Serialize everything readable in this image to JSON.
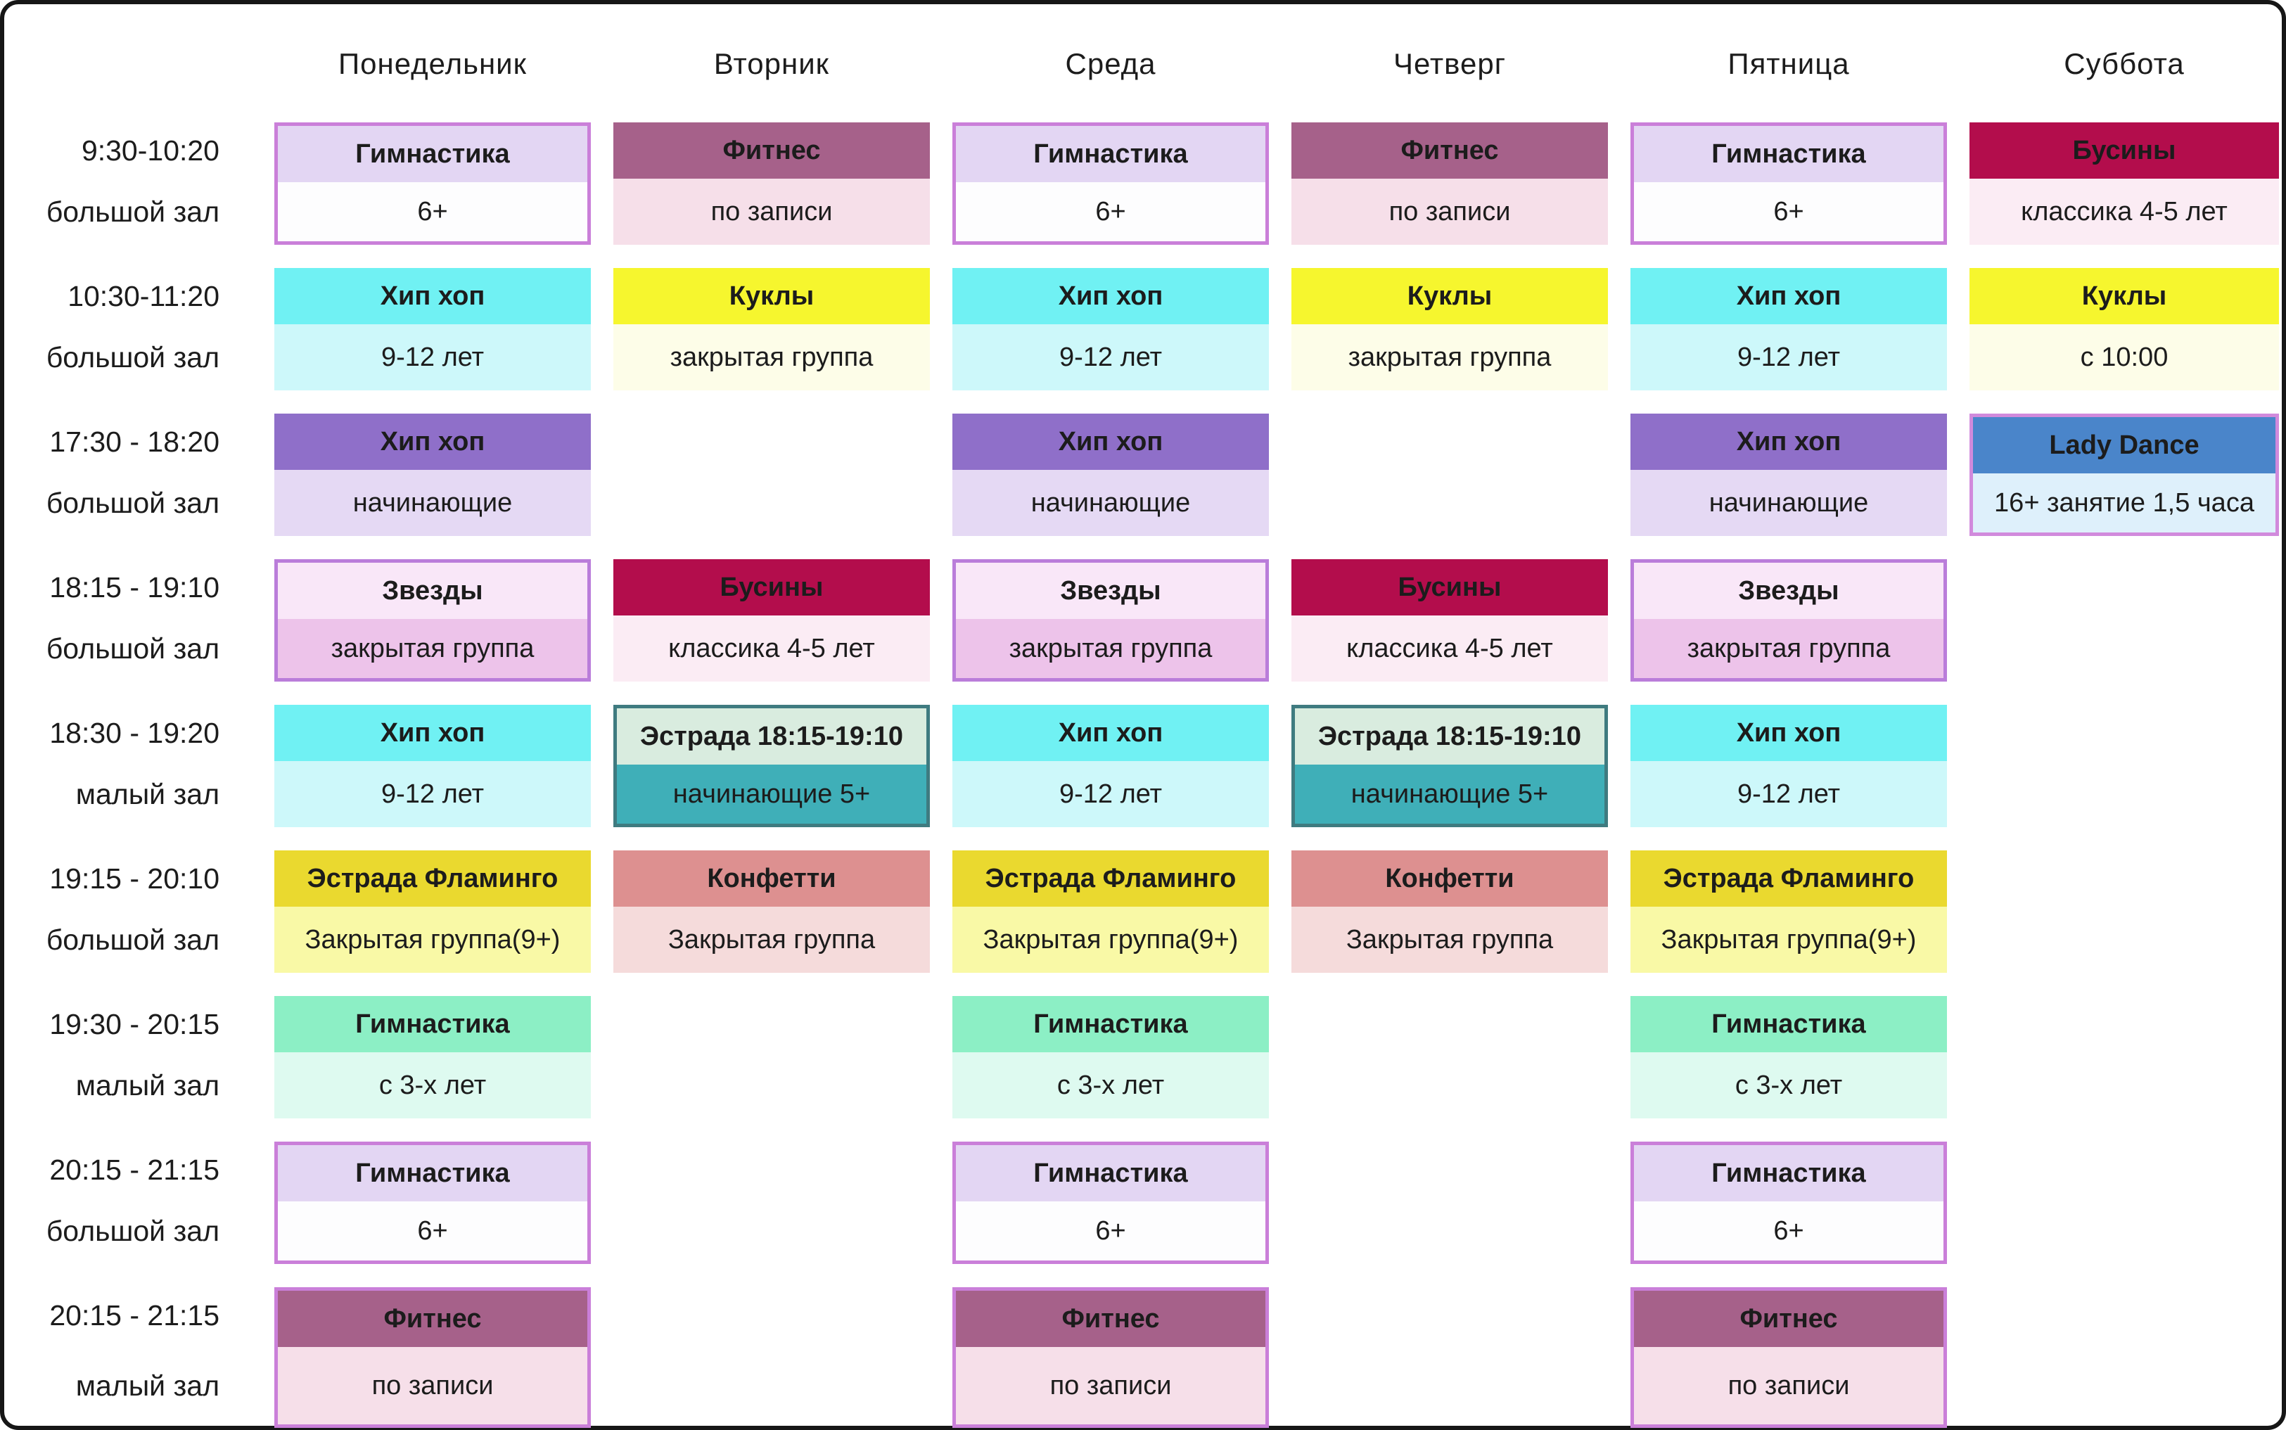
{
  "days": [
    "Понедельник",
    "Вторник",
    "Среда",
    "Четверг",
    "Пятница",
    "Суббота"
  ],
  "frame_color": "#161616",
  "text_color": "#1c1c1c",
  "styles": {
    "gymnastics_purple": {
      "header_bg": "#e3d6f3",
      "body_bg": "#fdfdfe",
      "border": "#ca7fd9"
    },
    "fitness": {
      "header_bg": "#a6618a",
      "body_bg": "#f6dfe9"
    },
    "fitness_bordered": {
      "header_bg": "#a6618a",
      "body_bg": "#f6dfe9",
      "border": "#ca7fd9"
    },
    "beads": {
      "header_bg": "#b30d4c",
      "body_bg": "#fbecf4"
    },
    "hiphop_cyan": {
      "header_bg": "#70f1f3",
      "body_bg": "#cdf8fa"
    },
    "dolls": {
      "header_bg": "#f6f62e",
      "body_bg": "#fdfde8"
    },
    "hiphop_purple": {
      "header_bg": "#8f6fc9",
      "body_bg": "#e5d9f4"
    },
    "lady_dance": {
      "header_bg": "#4a85ca",
      "body_bg": "#def0fb",
      "border": "#d18adc"
    },
    "stars": {
      "header_bg": "#f9e7f8",
      "body_bg": "#edc3ea",
      "border": "#ba7dda"
    },
    "estrada": {
      "header_bg": "#d9ecdf",
      "body_bg": "#3fafb8",
      "border": "#3f7b80"
    },
    "flamingo": {
      "header_bg": "#ead92f",
      "body_bg": "#f9f9a6"
    },
    "confetti": {
      "header_bg": "#dd9090",
      "body_bg": "#f5dbdb"
    },
    "gymnastics_mint": {
      "header_bg": "#8cefc5",
      "body_bg": "#defaf0"
    }
  },
  "rows": [
    {
      "time": "9:30-10:20",
      "hall": "большой зал",
      "cells": [
        {
          "title": "Гимнастика",
          "subtitle": "6+",
          "style": "gymnastics_purple"
        },
        {
          "title": "Фитнес",
          "subtitle": "по записи",
          "style": "fitness"
        },
        {
          "title": "Гимнастика",
          "subtitle": "6+",
          "style": "gymnastics_purple"
        },
        {
          "title": "Фитнес",
          "subtitle": "по записи",
          "style": "fitness"
        },
        {
          "title": "Гимнастика",
          "subtitle": "6+",
          "style": "gymnastics_purple"
        },
        {
          "title": "Бусины",
          "subtitle": "классика 4-5 лет",
          "style": "beads"
        }
      ]
    },
    {
      "time": "10:30-11:20",
      "hall": "большой зал",
      "cells": [
        {
          "title": "Хип хоп",
          "subtitle": "9-12 лет",
          "style": "hiphop_cyan"
        },
        {
          "title": "Куклы",
          "subtitle": "закрытая группа",
          "style": "dolls"
        },
        {
          "title": "Хип хоп",
          "subtitle": "9-12 лет",
          "style": "hiphop_cyan"
        },
        {
          "title": "Куклы",
          "subtitle": "закрытая группа",
          "style": "dolls"
        },
        {
          "title": "Хип хоп",
          "subtitle": "9-12 лет",
          "style": "hiphop_cyan"
        },
        {
          "title": "Куклы",
          "subtitle": "с 10:00",
          "style": "dolls"
        }
      ]
    },
    {
      "time": "17:30 - 18:20",
      "hall": "большой зал",
      "cells": [
        {
          "title": "Хип хоп",
          "subtitle": "начинающие",
          "style": "hiphop_purple"
        },
        null,
        {
          "title": "Хип хоп",
          "subtitle": "начинающие",
          "style": "hiphop_purple"
        },
        null,
        {
          "title": "Хип хоп",
          "subtitle": "начинающие",
          "style": "hiphop_purple"
        },
        {
          "title": "Lady Dance",
          "subtitle": "16+ занятие 1,5 часа",
          "style": "lady_dance"
        }
      ]
    },
    {
      "time": "18:15 - 19:10",
      "hall": "большой зал",
      "cells": [
        {
          "title": "Звезды",
          "subtitle": "закрытая группа",
          "style": "stars"
        },
        {
          "title": "Бусины",
          "subtitle": "классика 4-5 лет",
          "style": "beads"
        },
        {
          "title": "Звезды",
          "subtitle": "закрытая группа",
          "style": "stars"
        },
        {
          "title": "Бусины",
          "subtitle": "классика 4-5 лет",
          "style": "beads"
        },
        {
          "title": "Звезды",
          "subtitle": "закрытая группа",
          "style": "stars"
        },
        null
      ]
    },
    {
      "time": "18:30 - 19:20",
      "hall": "малый зал",
      "cells": [
        {
          "title": "Хип хоп",
          "subtitle": "9-12 лет",
          "style": "hiphop_cyan"
        },
        {
          "title": "Эстрада 18:15-19:10",
          "subtitle": "начинающие 5+",
          "style": "estrada"
        },
        {
          "title": "Хип хоп",
          "subtitle": "9-12 лет",
          "style": "hiphop_cyan"
        },
        {
          "title": "Эстрада 18:15-19:10",
          "subtitle": "начинающие 5+",
          "style": "estrada"
        },
        {
          "title": "Хип хоп",
          "subtitle": "9-12 лет",
          "style": "hiphop_cyan"
        },
        null
      ]
    },
    {
      "time": "19:15 - 20:10",
      "hall": "большой зал",
      "cells": [
        {
          "title": "Эстрада Фламинго",
          "subtitle": "Закрытая группа(9+)",
          "style": "flamingo"
        },
        {
          "title": "Конфетти",
          "subtitle": "Закрытая группа",
          "style": "confetti"
        },
        {
          "title": "Эстрада Фламинго",
          "subtitle": "Закрытая группа(9+)",
          "style": "flamingo"
        },
        {
          "title": "Конфетти",
          "subtitle": "Закрытая группа",
          "style": "confetti"
        },
        {
          "title": "Эстрада Фламинго",
          "subtitle": "Закрытая группа(9+)",
          "style": "flamingo"
        },
        null
      ]
    },
    {
      "time": "19:30 - 20:15",
      "hall": "малый зал",
      "cells": [
        {
          "title": "Гимнастика",
          "subtitle": "с 3-х лет",
          "style": "gymnastics_mint"
        },
        null,
        {
          "title": "Гимнастика",
          "subtitle": "с 3-х лет",
          "style": "gymnastics_mint"
        },
        null,
        {
          "title": "Гимнастика",
          "subtitle": "с 3-х лет",
          "style": "gymnastics_mint"
        },
        null
      ]
    },
    {
      "time": "20:15 - 21:15",
      "hall": "большой зал",
      "cells": [
        {
          "title": "Гимнастика",
          "subtitle": "6+",
          "style": "gymnastics_purple"
        },
        null,
        {
          "title": "Гимнастика",
          "subtitle": "6+",
          "style": "gymnastics_purple"
        },
        null,
        {
          "title": "Гимнастика",
          "subtitle": "6+",
          "style": "gymnastics_purple"
        },
        null
      ]
    },
    {
      "time": "20:15 - 21:15",
      "hall": "малый зал",
      "cells": [
        {
          "title": "Фитнес",
          "subtitle": "по записи",
          "style": "fitness_bordered"
        },
        null,
        {
          "title": "Фитнес",
          "subtitle": "по записи",
          "style": "fitness_bordered"
        },
        null,
        {
          "title": "Фитнес",
          "subtitle": "по записи",
          "style": "fitness_bordered"
        },
        null
      ]
    }
  ]
}
